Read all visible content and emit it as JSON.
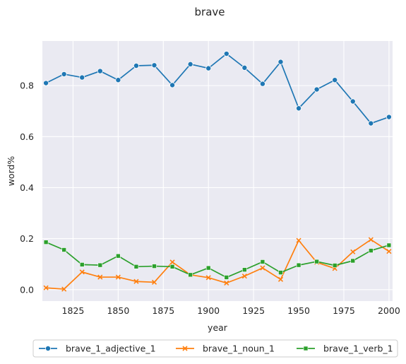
{
  "chart_data": {
    "type": "line",
    "title": "brave",
    "xlabel": "year",
    "ylabel": "word%",
    "xlim": [
      1808,
      2002
    ],
    "ylim": [
      -0.045,
      0.975
    ],
    "xticks": [
      1825,
      1850,
      1875,
      1900,
      1925,
      1950,
      1975,
      2000
    ],
    "yticks": [
      0.0,
      0.2,
      0.4,
      0.6,
      0.8
    ],
    "ytick_labels": [
      "0.0",
      "0.2",
      "0.4",
      "0.6",
      "0.8"
    ],
    "grid": true,
    "legend_position": "bottom-center",
    "x": [
      1810,
      1820,
      1830,
      1840,
      1850,
      1860,
      1870,
      1880,
      1890,
      1900,
      1910,
      1920,
      1930,
      1940,
      1950,
      1960,
      1970,
      1980,
      1990,
      2000
    ],
    "series": [
      {
        "name": "brave_1_adjective_1",
        "color": "#1f77b4",
        "marker": "circle",
        "values": [
          0.81,
          0.845,
          0.832,
          0.857,
          0.822,
          0.878,
          0.88,
          0.802,
          0.884,
          0.868,
          0.925,
          0.87,
          0.807,
          0.893,
          0.711,
          0.785,
          0.822,
          0.738,
          0.652,
          0.677
        ]
      },
      {
        "name": "brave_1_noun_1",
        "color": "#ff7f0e",
        "marker": "x",
        "values": [
          0.007,
          0.002,
          0.069,
          0.049,
          0.049,
          0.032,
          0.029,
          0.108,
          0.058,
          0.047,
          0.026,
          0.053,
          0.085,
          0.04,
          0.193,
          0.107,
          0.083,
          0.148,
          0.196,
          0.15
        ]
      },
      {
        "name": "brave_1_verb_1",
        "color": "#2ca02c",
        "marker": "square",
        "values": [
          0.186,
          0.156,
          0.098,
          0.096,
          0.132,
          0.09,
          0.092,
          0.09,
          0.058,
          0.085,
          0.048,
          0.078,
          0.109,
          0.067,
          0.096,
          0.11,
          0.095,
          0.113,
          0.153,
          0.174
        ]
      }
    ]
  }
}
